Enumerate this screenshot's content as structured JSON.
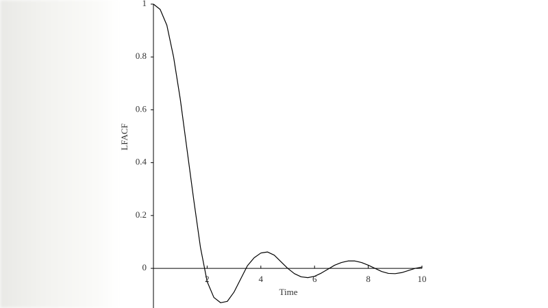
{
  "chart_data": {
    "type": "line",
    "x_label": "Time",
    "y_label": "LFACF",
    "x": [
      0,
      0.25,
      0.5,
      0.75,
      1,
      1.25,
      1.5,
      1.75,
      2,
      2.25,
      2.5,
      2.75,
      3,
      3.25,
      3.5,
      3.75,
      4,
      4.25,
      4.5,
      4.75,
      5,
      5.25,
      5.5,
      5.75,
      6,
      6.25,
      6.5,
      6.75,
      7,
      7.25,
      7.5,
      7.75,
      8,
      8.25,
      8.5,
      8.75,
      9,
      9.25,
      9.5,
      9.75,
      10
    ],
    "values": [
      1,
      0.98,
      0.92,
      0.8,
      0.64,
      0.45,
      0.26,
      0.08,
      -0.05,
      -0.11,
      -0.13,
      -0.125,
      -0.09,
      -0.04,
      0.01,
      0.04,
      0.058,
      0.062,
      0.05,
      0.025,
      0,
      -0.02,
      -0.032,
      -0.035,
      -0.03,
      -0.018,
      -0.003,
      0.012,
      0.022,
      0.028,
      0.028,
      0.022,
      0.012,
      0,
      -0.012,
      -0.019,
      -0.02,
      -0.016,
      -0.008,
      0,
      0.005
    ],
    "color": "#000000",
    "xlim": [
      0,
      10
    ],
    "ylim": [
      -0.15,
      1
    ],
    "xticks": [
      2,
      4,
      6,
      8,
      10
    ],
    "yticks": [
      0,
      0.2,
      0.4,
      0.6,
      0.8,
      1
    ]
  }
}
